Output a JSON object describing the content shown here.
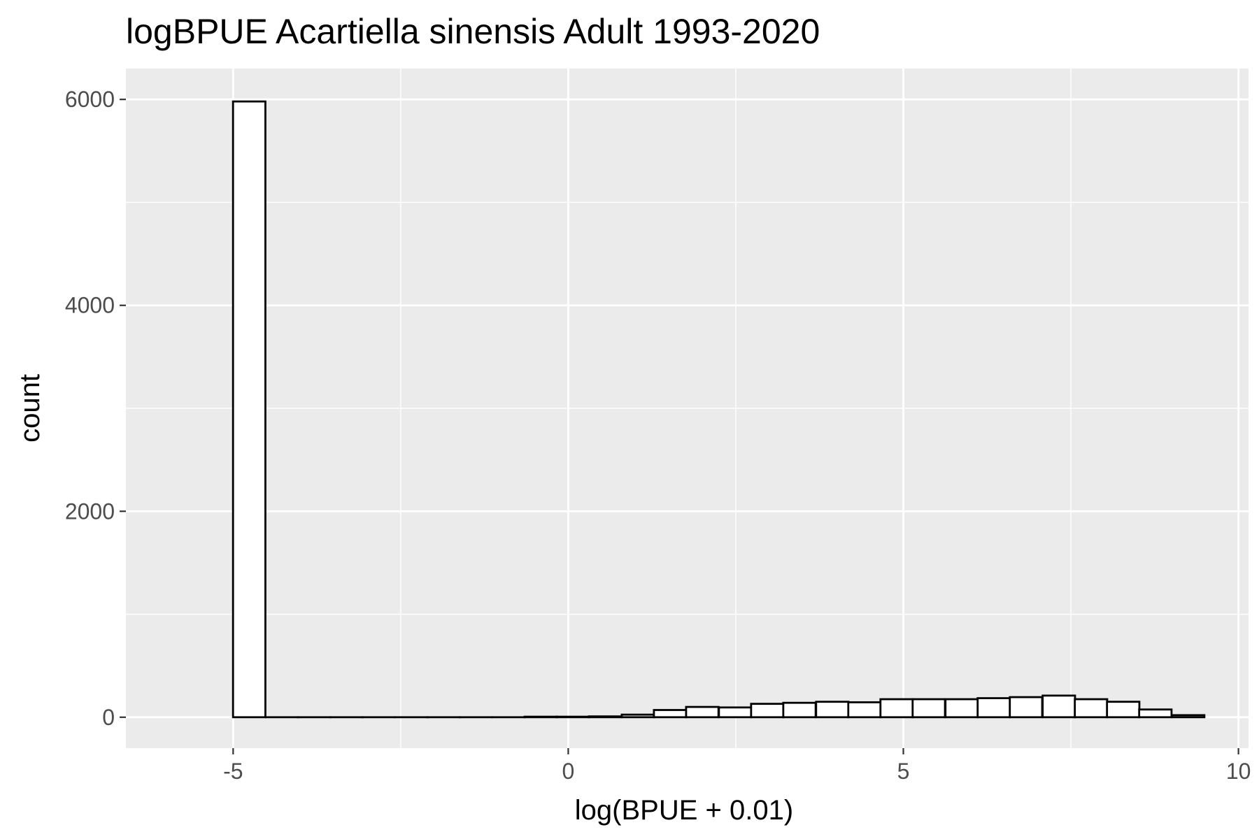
{
  "chart_data": {
    "type": "bar",
    "title": "logBPUE Acartiella sinensis Adult  1993-2020",
    "xlabel": "log(BPUE + 0.01)",
    "ylabel": "count",
    "xlim": [
      -6.6,
      10.15
    ],
    "ylim": [
      -300,
      6300
    ],
    "x_ticks": [
      -5,
      0,
      5,
      10
    ],
    "x_tick_labels": [
      "-5",
      "0",
      "5",
      "10"
    ],
    "y_ticks": [
      0,
      2000,
      4000,
      6000
    ],
    "y_tick_labels": [
      "0",
      "2000",
      "4000",
      "6000"
    ],
    "x_minor_grid": [
      -2.5,
      2.5,
      7.5
    ],
    "y_minor_grid": [
      1000,
      3000,
      5000
    ],
    "bin_width": 0.483,
    "bins": [
      {
        "x": -4.76,
        "count": 5980
      },
      {
        "x": -4.27,
        "count": 0
      },
      {
        "x": -3.79,
        "count": 0
      },
      {
        "x": -3.31,
        "count": 0
      },
      {
        "x": -2.83,
        "count": 0
      },
      {
        "x": -2.34,
        "count": 0
      },
      {
        "x": -1.86,
        "count": 0
      },
      {
        "x": -1.38,
        "count": 0
      },
      {
        "x": -0.89,
        "count": 0
      },
      {
        "x": -0.41,
        "count": 5
      },
      {
        "x": 0.07,
        "count": 5
      },
      {
        "x": 0.55,
        "count": 8
      },
      {
        "x": 1.04,
        "count": 25
      },
      {
        "x": 1.52,
        "count": 70
      },
      {
        "x": 2.0,
        "count": 100
      },
      {
        "x": 2.49,
        "count": 95
      },
      {
        "x": 2.97,
        "count": 130
      },
      {
        "x": 3.45,
        "count": 140
      },
      {
        "x": 3.94,
        "count": 150
      },
      {
        "x": 4.42,
        "count": 145
      },
      {
        "x": 4.9,
        "count": 175
      },
      {
        "x": 5.38,
        "count": 175
      },
      {
        "x": 5.87,
        "count": 175
      },
      {
        "x": 6.35,
        "count": 185
      },
      {
        "x": 6.83,
        "count": 195
      },
      {
        "x": 7.32,
        "count": 210
      },
      {
        "x": 7.8,
        "count": 175
      },
      {
        "x": 8.28,
        "count": 150
      },
      {
        "x": 8.76,
        "count": 75
      },
      {
        "x": 9.25,
        "count": 20
      }
    ],
    "bar_fill": "#ffffff",
    "bar_stroke": "#000000",
    "panel_background": "#ebebeb",
    "grid_color": "#ffffff",
    "grid": true,
    "legend": "none"
  }
}
